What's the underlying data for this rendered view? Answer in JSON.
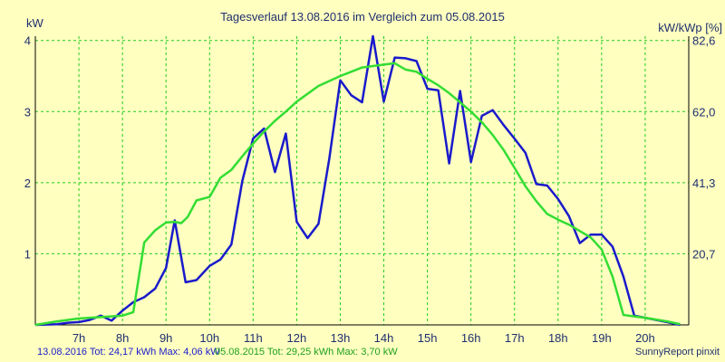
{
  "chart_data": {
    "type": "line",
    "title": "Tagesverlauf 13.08.2016 im Vergleich zum 05.08.2015",
    "ylabel": "kW",
    "y2label": "kW/kWp [%]",
    "ylim": [
      0,
      4.06
    ],
    "yticks": [
      1,
      2,
      3,
      4
    ],
    "y2ticks": [
      {
        "at": 1.0,
        "label": "20,7"
      },
      {
        "at": 2.0,
        "label": "41,3"
      },
      {
        "at": 3.0,
        "label": "62,0"
      },
      {
        "at": 4.0,
        "label": "82,6"
      }
    ],
    "xlim": [
      6.0,
      21.0
    ],
    "xticks": [
      7,
      8,
      9,
      10,
      11,
      12,
      13,
      14,
      15,
      16,
      17,
      18,
      19,
      20
    ],
    "xticklabels": [
      "7h",
      "8h",
      "9h",
      "10h",
      "11h",
      "12h",
      "13h",
      "14h",
      "15h",
      "16h",
      "17h",
      "18h",
      "19h",
      "20h"
    ],
    "grid": true,
    "background": "#ffffc0",
    "grid_color": "#22cc22",
    "series": [
      {
        "name": "13.08.2016",
        "color": "#1a1acc",
        "points": [
          [
            6.0,
            0.0
          ],
          [
            6.5,
            0.01
          ],
          [
            6.75,
            0.03
          ],
          [
            7.0,
            0.04
          ],
          [
            7.25,
            0.07
          ],
          [
            7.5,
            0.13
          ],
          [
            7.75,
            0.06
          ],
          [
            8.0,
            0.2
          ],
          [
            8.25,
            0.32
          ],
          [
            8.5,
            0.39
          ],
          [
            8.75,
            0.51
          ],
          [
            9.0,
            0.8
          ],
          [
            9.2,
            1.47
          ],
          [
            9.45,
            0.6
          ],
          [
            9.7,
            0.63
          ],
          [
            10.0,
            0.83
          ],
          [
            10.25,
            0.92
          ],
          [
            10.5,
            1.13
          ],
          [
            10.75,
            2.02
          ],
          [
            11.0,
            2.62
          ],
          [
            11.25,
            2.76
          ],
          [
            11.5,
            2.15
          ],
          [
            11.75,
            2.69
          ],
          [
            12.0,
            1.45
          ],
          [
            12.25,
            1.22
          ],
          [
            12.5,
            1.42
          ],
          [
            12.75,
            2.34
          ],
          [
            13.0,
            3.44
          ],
          [
            13.25,
            3.23
          ],
          [
            13.5,
            3.13
          ],
          [
            13.75,
            4.06
          ],
          [
            14.0,
            3.14
          ],
          [
            14.25,
            3.76
          ],
          [
            14.5,
            3.75
          ],
          [
            14.75,
            3.71
          ],
          [
            15.0,
            3.32
          ],
          [
            15.25,
            3.3
          ],
          [
            15.5,
            2.27
          ],
          [
            15.75,
            3.29
          ],
          [
            16.0,
            2.29
          ],
          [
            16.25,
            2.94
          ],
          [
            16.5,
            3.02
          ],
          [
            16.75,
            2.81
          ],
          [
            17.0,
            2.62
          ],
          [
            17.25,
            2.42
          ],
          [
            17.5,
            1.98
          ],
          [
            17.75,
            1.96
          ],
          [
            18.0,
            1.77
          ],
          [
            18.25,
            1.53
          ],
          [
            18.5,
            1.15
          ],
          [
            18.75,
            1.27
          ],
          [
            19.0,
            1.27
          ],
          [
            19.25,
            1.1
          ],
          [
            19.5,
            0.68
          ],
          [
            19.75,
            0.13
          ],
          [
            20.0,
            0.1
          ],
          [
            20.5,
            0.04
          ],
          [
            20.8,
            0.0
          ]
        ]
      },
      {
        "name": "05.08.2015",
        "color": "#33dd33",
        "points": [
          [
            6.0,
            0.0
          ],
          [
            6.5,
            0.05
          ],
          [
            7.0,
            0.09
          ],
          [
            7.5,
            0.11
          ],
          [
            8.0,
            0.13
          ],
          [
            8.25,
            0.18
          ],
          [
            8.5,
            1.16
          ],
          [
            8.75,
            1.33
          ],
          [
            9.0,
            1.44
          ],
          [
            9.2,
            1.45
          ],
          [
            9.35,
            1.43
          ],
          [
            9.5,
            1.52
          ],
          [
            9.7,
            1.75
          ],
          [
            10.0,
            1.8
          ],
          [
            10.25,
            2.07
          ],
          [
            10.5,
            2.18
          ],
          [
            10.75,
            2.37
          ],
          [
            11.0,
            2.55
          ],
          [
            11.25,
            2.72
          ],
          [
            11.5,
            2.87
          ],
          [
            11.75,
            3.0
          ],
          [
            12.0,
            3.14
          ],
          [
            12.5,
            3.36
          ],
          [
            13.0,
            3.5
          ],
          [
            13.5,
            3.62
          ],
          [
            14.0,
            3.66
          ],
          [
            14.25,
            3.68
          ],
          [
            14.5,
            3.59
          ],
          [
            14.75,
            3.56
          ],
          [
            15.0,
            3.46
          ],
          [
            15.25,
            3.37
          ],
          [
            15.5,
            3.26
          ],
          [
            15.75,
            3.13
          ],
          [
            16.0,
            3.0
          ],
          [
            16.25,
            2.85
          ],
          [
            16.5,
            2.67
          ],
          [
            16.75,
            2.46
          ],
          [
            17.0,
            2.21
          ],
          [
            17.25,
            1.95
          ],
          [
            17.5,
            1.74
          ],
          [
            17.75,
            1.56
          ],
          [
            18.0,
            1.48
          ],
          [
            18.25,
            1.41
          ],
          [
            18.5,
            1.32
          ],
          [
            18.75,
            1.23
          ],
          [
            19.0,
            1.06
          ],
          [
            19.25,
            0.68
          ],
          [
            19.5,
            0.14
          ],
          [
            19.75,
            0.12
          ],
          [
            20.0,
            0.1
          ],
          [
            20.5,
            0.05
          ],
          [
            20.8,
            0.01
          ]
        ]
      }
    ]
  },
  "footer": {
    "series_2016": "13.08.2016 Tot: 24,17 kWh Max: 4,06 kW",
    "series_2015": "05.08.2015 Tot: 29,25 kWh Max: 3,70 kW",
    "credit": "SunnyReport pinxit"
  }
}
